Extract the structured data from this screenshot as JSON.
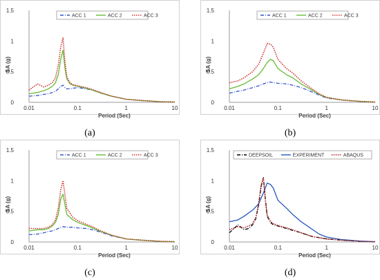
{
  "chart_data": [
    {
      "type": "line",
      "caption": "(a)",
      "xlabel": "Period (Sec)",
      "ylabel": "SA (g)",
      "xscale": "log",
      "xlim": [
        0.01,
        10
      ],
      "ylim": [
        0,
        1.5
      ],
      "xticks": [
        "0.01",
        "0.1",
        "1",
        "10"
      ],
      "yticks": [
        "0",
        "0.5",
        "1",
        "1.5"
      ],
      "legend": "top-right",
      "series": [
        {
          "name": "ACC 1",
          "color": "#3355cc",
          "dash": "dashdot",
          "x": [
            0.01,
            0.015,
            0.02,
            0.025,
            0.03,
            0.035,
            0.04,
            0.045,
            0.05,
            0.055,
            0.06,
            0.07,
            0.08,
            0.1,
            0.15,
            0.2,
            0.3,
            0.5,
            1,
            2,
            5,
            10
          ],
          "y": [
            0.1,
            0.11,
            0.13,
            0.14,
            0.16,
            0.18,
            0.22,
            0.26,
            0.28,
            0.24,
            0.22,
            0.22,
            0.23,
            0.24,
            0.22,
            0.2,
            0.15,
            0.1,
            0.05,
            0.03,
            0.01,
            0.005
          ]
        },
        {
          "name": "ACC 2",
          "color": "#66bb33",
          "dash": "solid",
          "x": [
            0.01,
            0.015,
            0.02,
            0.025,
            0.03,
            0.035,
            0.04,
            0.045,
            0.05,
            0.055,
            0.06,
            0.07,
            0.08,
            0.1,
            0.15,
            0.2,
            0.3,
            0.5,
            1,
            2,
            5,
            10
          ],
          "y": [
            0.14,
            0.16,
            0.19,
            0.22,
            0.26,
            0.32,
            0.45,
            0.7,
            0.85,
            0.55,
            0.38,
            0.3,
            0.28,
            0.26,
            0.23,
            0.2,
            0.15,
            0.1,
            0.05,
            0.03,
            0.01,
            0.005
          ]
        },
        {
          "name": "ACC 3",
          "color": "#cc3333",
          "dash": "dotted",
          "x": [
            0.01,
            0.015,
            0.02,
            0.025,
            0.03,
            0.035,
            0.04,
            0.045,
            0.05,
            0.055,
            0.06,
            0.07,
            0.08,
            0.1,
            0.15,
            0.2,
            0.3,
            0.5,
            1,
            2,
            5,
            10
          ],
          "y": [
            0.2,
            0.3,
            0.25,
            0.28,
            0.32,
            0.4,
            0.6,
            0.9,
            1.05,
            0.65,
            0.42,
            0.32,
            0.29,
            0.27,
            0.24,
            0.21,
            0.16,
            0.1,
            0.05,
            0.03,
            0.01,
            0.005
          ]
        }
      ]
    },
    {
      "type": "line",
      "caption": "(b)",
      "xlabel": "Period (Sec)",
      "ylabel": "SA (g)",
      "xscale": "log",
      "xlim": [
        0.01,
        10
      ],
      "ylim": [
        0,
        1.5
      ],
      "xticks": [
        "0.01",
        "0.1",
        "1",
        "10"
      ],
      "yticks": [
        "0",
        "0.5",
        "1",
        "1.5"
      ],
      "legend": "top-right",
      "series": [
        {
          "name": "ACC 1",
          "color": "#3355cc",
          "dash": "dashdot",
          "x": [
            0.01,
            0.015,
            0.02,
            0.03,
            0.04,
            0.05,
            0.06,
            0.07,
            0.08,
            0.1,
            0.15,
            0.2,
            0.3,
            0.5,
            0.7,
            1,
            2,
            5,
            10
          ],
          "y": [
            0.15,
            0.18,
            0.2,
            0.24,
            0.27,
            0.3,
            0.32,
            0.33,
            0.32,
            0.31,
            0.3,
            0.28,
            0.24,
            0.17,
            0.12,
            0.07,
            0.04,
            0.015,
            0.005
          ]
        },
        {
          "name": "ACC 2",
          "color": "#66bb33",
          "dash": "solid",
          "x": [
            0.01,
            0.015,
            0.02,
            0.03,
            0.04,
            0.05,
            0.06,
            0.07,
            0.08,
            0.1,
            0.15,
            0.2,
            0.3,
            0.5,
            0.7,
            1,
            2,
            5,
            10
          ],
          "y": [
            0.22,
            0.26,
            0.3,
            0.38,
            0.45,
            0.55,
            0.65,
            0.7,
            0.68,
            0.55,
            0.45,
            0.4,
            0.3,
            0.2,
            0.13,
            0.08,
            0.04,
            0.015,
            0.005
          ]
        },
        {
          "name": "ACC 3",
          "color": "#cc3333",
          "dash": "dotted",
          "x": [
            0.01,
            0.015,
            0.02,
            0.03,
            0.04,
            0.05,
            0.06,
            0.07,
            0.08,
            0.1,
            0.15,
            0.2,
            0.3,
            0.5,
            0.7,
            1,
            2,
            5,
            10
          ],
          "y": [
            0.32,
            0.35,
            0.4,
            0.5,
            0.62,
            0.8,
            0.96,
            0.95,
            0.9,
            0.7,
            0.55,
            0.48,
            0.35,
            0.22,
            0.14,
            0.08,
            0.04,
            0.015,
            0.005
          ]
        }
      ]
    },
    {
      "type": "line",
      "caption": "(c)",
      "xlabel": "Period (Sec)",
      "ylabel": "SA (g)",
      "xscale": "log",
      "xlim": [
        0.01,
        10
      ],
      "ylim": [
        0,
        1.5
      ],
      "xticks": [
        "0.01",
        "0.1",
        "1",
        "10"
      ],
      "yticks": [
        "0",
        "0.5",
        "1",
        "1.5"
      ],
      "legend": "top-right",
      "series": [
        {
          "name": "ACC 1",
          "color": "#3355cc",
          "dash": "dashdot",
          "x": [
            0.01,
            0.015,
            0.02,
            0.025,
            0.03,
            0.035,
            0.04,
            0.045,
            0.05,
            0.06,
            0.08,
            0.1,
            0.15,
            0.2,
            0.3,
            0.5,
            1,
            2,
            5,
            10
          ],
          "y": [
            0.12,
            0.13,
            0.15,
            0.17,
            0.18,
            0.2,
            0.22,
            0.24,
            0.25,
            0.24,
            0.24,
            0.23,
            0.22,
            0.2,
            0.16,
            0.1,
            0.05,
            0.03,
            0.01,
            0.005
          ]
        },
        {
          "name": "ACC 2",
          "color": "#66bb33",
          "dash": "solid",
          "x": [
            0.01,
            0.015,
            0.02,
            0.025,
            0.03,
            0.035,
            0.04,
            0.045,
            0.05,
            0.06,
            0.08,
            0.1,
            0.15,
            0.2,
            0.3,
            0.5,
            1,
            2,
            5,
            10
          ],
          "y": [
            0.18,
            0.2,
            0.2,
            0.22,
            0.26,
            0.32,
            0.45,
            0.7,
            0.78,
            0.45,
            0.36,
            0.32,
            0.27,
            0.23,
            0.17,
            0.11,
            0.05,
            0.03,
            0.01,
            0.005
          ]
        },
        {
          "name": "ACC 3",
          "color": "#cc3333",
          "dash": "dotted",
          "x": [
            0.01,
            0.015,
            0.02,
            0.025,
            0.03,
            0.035,
            0.04,
            0.045,
            0.05,
            0.06,
            0.08,
            0.1,
            0.15,
            0.2,
            0.3,
            0.5,
            1,
            2,
            5,
            10
          ],
          "y": [
            0.22,
            0.22,
            0.22,
            0.24,
            0.28,
            0.36,
            0.55,
            0.85,
            1.0,
            0.55,
            0.4,
            0.35,
            0.29,
            0.25,
            0.18,
            0.11,
            0.05,
            0.03,
            0.01,
            0.005
          ]
        }
      ]
    },
    {
      "type": "line",
      "caption": "(d)",
      "xlabel": "Period (Sec)",
      "ylabel": "SA (g)",
      "xscale": "log",
      "xlim": [
        0.01,
        10
      ],
      "ylim": [
        0,
        1.5
      ],
      "xticks": [
        "0.01",
        "0.1",
        "1",
        "10"
      ],
      "yticks": [
        "0",
        "0.5",
        "1",
        "1.5"
      ],
      "legend": "top-right",
      "series": [
        {
          "name": "DEEPSOIL",
          "color": "#000000",
          "dash": "dashdot",
          "x": [
            0.01,
            0.015,
            0.02,
            0.025,
            0.03,
            0.035,
            0.04,
            0.045,
            0.05,
            0.055,
            0.06,
            0.07,
            0.08,
            0.1,
            0.15,
            0.2,
            0.3,
            0.5,
            1,
            2,
            5,
            10
          ],
          "y": [
            0.15,
            0.28,
            0.2,
            0.22,
            0.28,
            0.38,
            0.6,
            0.9,
            1.05,
            0.7,
            0.42,
            0.32,
            0.28,
            0.26,
            0.22,
            0.19,
            0.15,
            0.09,
            0.05,
            0.03,
            0.01,
            0.005
          ]
        },
        {
          "name": "EXPERIMENT",
          "color": "#2255bb",
          "dash": "solid",
          "x": [
            0.01,
            0.015,
            0.02,
            0.03,
            0.04,
            0.05,
            0.06,
            0.07,
            0.08,
            0.1,
            0.15,
            0.2,
            0.3,
            0.5,
            0.7,
            1,
            2,
            5,
            10
          ],
          "y": [
            0.33,
            0.36,
            0.42,
            0.52,
            0.62,
            0.8,
            0.96,
            0.94,
            0.88,
            0.68,
            0.55,
            0.45,
            0.33,
            0.21,
            0.13,
            0.08,
            0.04,
            0.015,
            0.005
          ]
        },
        {
          "name": "ABAQUS",
          "color": "#aa2222",
          "dash": "dotted",
          "x": [
            0.01,
            0.015,
            0.02,
            0.025,
            0.03,
            0.035,
            0.04,
            0.045,
            0.05,
            0.055,
            0.06,
            0.07,
            0.08,
            0.1,
            0.15,
            0.2,
            0.3,
            0.5,
            1,
            2,
            5,
            10
          ],
          "y": [
            0.2,
            0.25,
            0.23,
            0.26,
            0.3,
            0.4,
            0.62,
            0.92,
            1.05,
            0.68,
            0.44,
            0.34,
            0.3,
            0.27,
            0.23,
            0.2,
            0.15,
            0.09,
            0.05,
            0.03,
            0.01,
            0.005
          ]
        }
      ]
    }
  ]
}
